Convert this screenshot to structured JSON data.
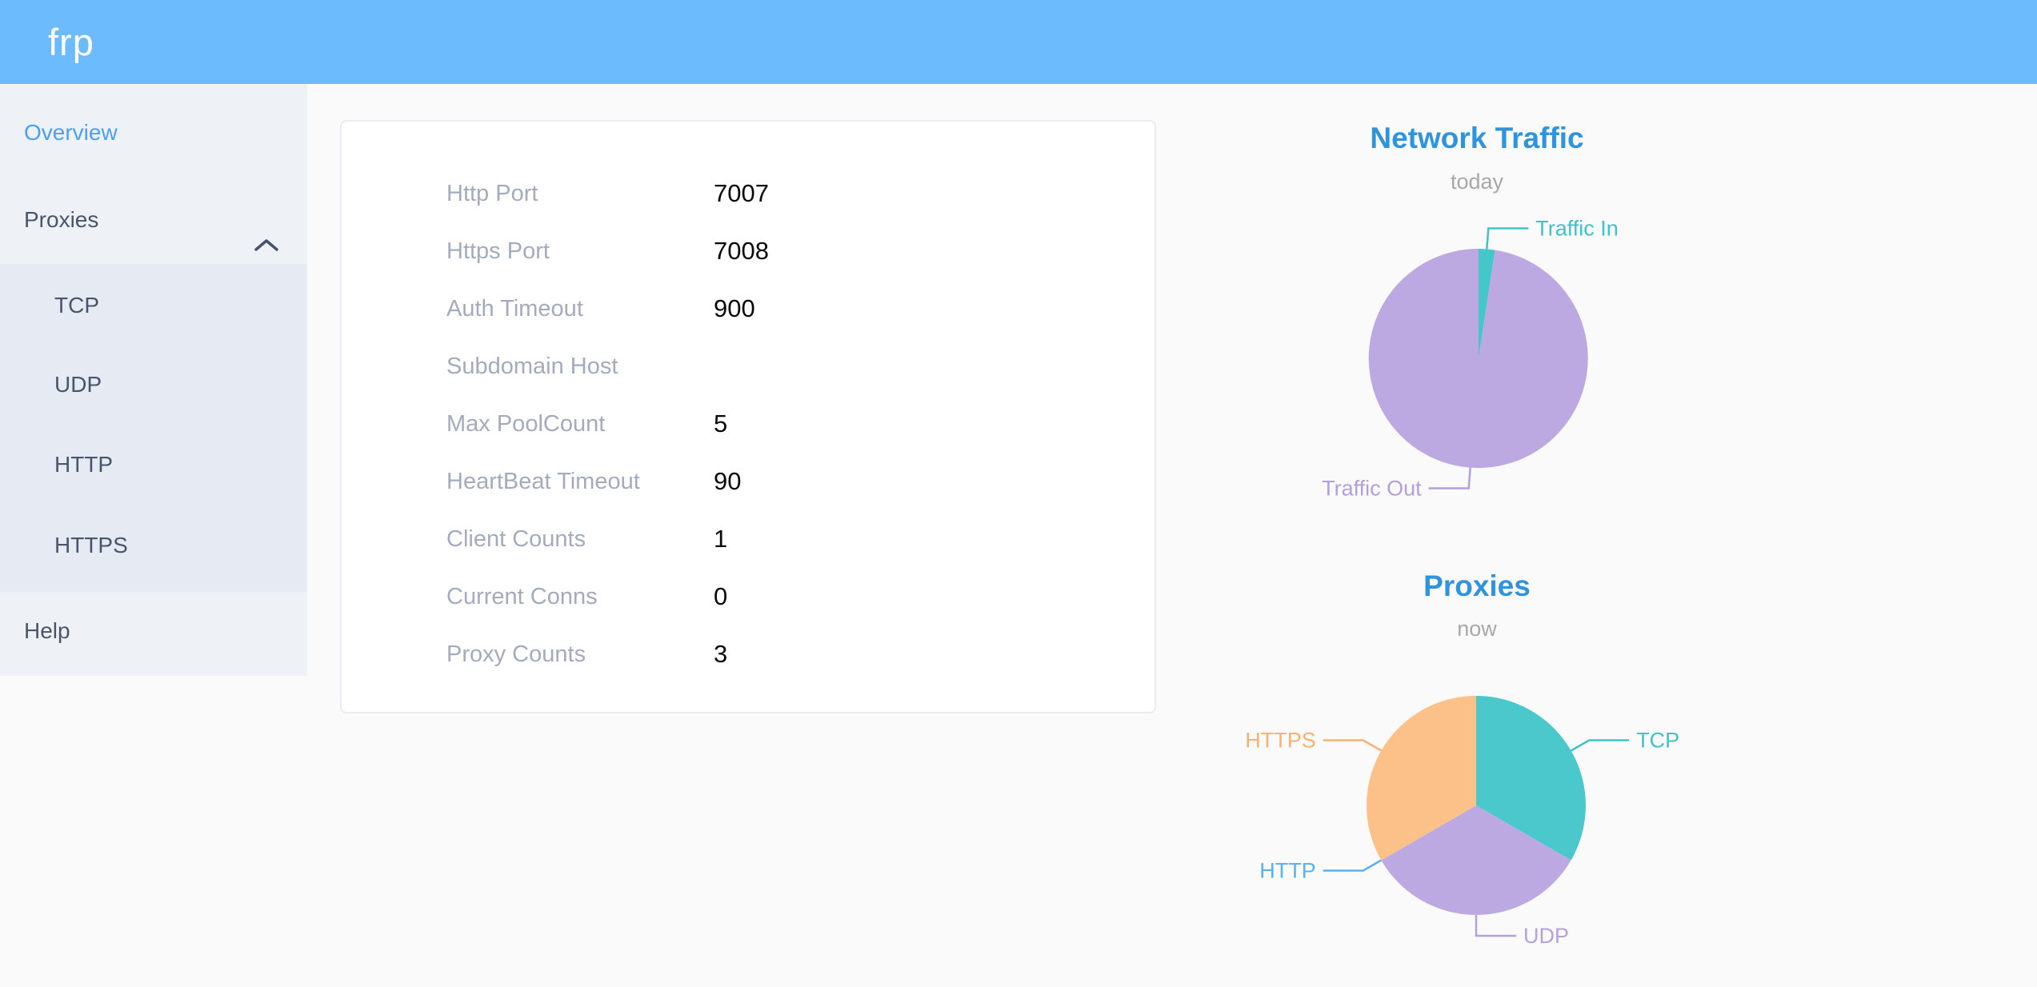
{
  "header": {
    "logo": "frp"
  },
  "colors": {
    "header_bg": "#6cbcfd",
    "sidebar_bg": "#eef1f6",
    "submenu_bg": "#e6eaf2",
    "active_menu_item": "#4aa0f7",
    "menu_text": "#48566d",
    "chart_title_blue": "#3094dd",
    "teal": "#4bc8cb",
    "purple": "#bda9e2",
    "orange": "#fbc189",
    "http_blue": "#5ab1ef"
  },
  "sidebar": {
    "overview": "Overview",
    "proxies": "Proxies",
    "proxies_children": [
      "TCP",
      "UDP",
      "HTTP",
      "HTTPS"
    ],
    "help": "Help"
  },
  "server_info": {
    "rows": [
      {
        "label": "Http Port",
        "value": "7007"
      },
      {
        "label": "Https Port",
        "value": "7008"
      },
      {
        "label": "Auth Timeout",
        "value": "900"
      },
      {
        "label": "Subdomain Host",
        "value": ""
      },
      {
        "label": "Max PoolCount",
        "value": "5"
      },
      {
        "label": "HeartBeat Timeout",
        "value": "90"
      },
      {
        "label": "Client Counts",
        "value": "1"
      },
      {
        "label": "Current Conns",
        "value": "0"
      },
      {
        "label": "Proxy Counts",
        "value": "3"
      }
    ]
  },
  "chart_data": [
    {
      "type": "pie",
      "title": "Network Traffic",
      "subtitle": "today",
      "legend_position": "none",
      "label_style": "outside-leader-lines",
      "unit": "percent-of-total",
      "series": [
        {
          "name": "Traffic In",
          "value": 2.4,
          "color": "#45c6c9",
          "label_color": "#3ec3c7"
        },
        {
          "name": "Traffic Out",
          "value": 97.6,
          "color": "#bda9e2",
          "label_color": "#b29fdc"
        }
      ]
    },
    {
      "type": "pie",
      "title": "Proxies",
      "subtitle": "now",
      "legend_position": "none",
      "label_style": "outside-leader-lines",
      "unit": "proxy-count",
      "series": [
        {
          "name": "TCP",
          "value": 1,
          "color": "#4bc8cb",
          "label_color": "#3fc3c6"
        },
        {
          "name": "UDP",
          "value": 1,
          "color": "#bda9e2",
          "label_color": "#b5a1dd"
        },
        {
          "name": "HTTP",
          "value": 0,
          "color": "#5ab1ef",
          "label_color": "#5ab1ef"
        },
        {
          "name": "HTTPS",
          "value": 1,
          "color": "#fbc189",
          "label_color": "#f7b272"
        }
      ]
    }
  ]
}
